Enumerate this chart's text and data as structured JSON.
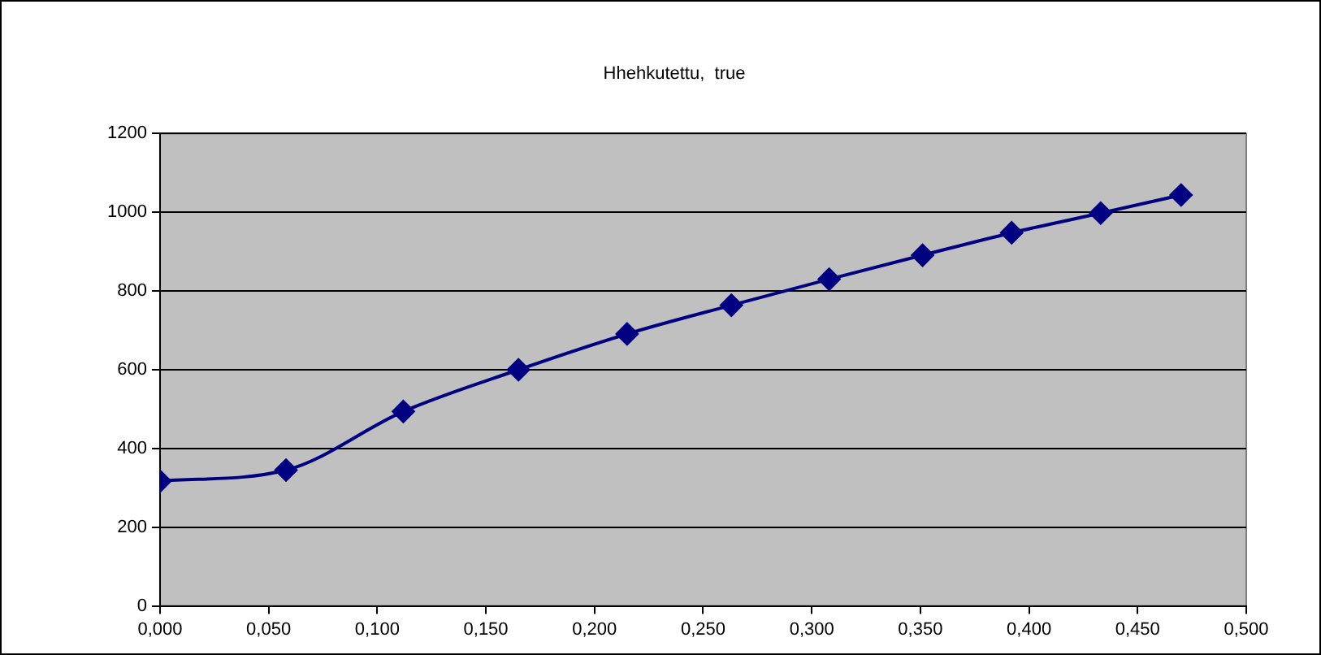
{
  "chart_data": {
    "type": "line",
    "title": "Hhehkutettu,  true",
    "x": [
      0.0,
      0.058,
      0.112,
      0.165,
      0.215,
      0.263,
      0.308,
      0.351,
      0.392,
      0.433,
      0.47
    ],
    "series": [
      {
        "color": "#000080",
        "values": [
          317,
          345,
          494,
          600,
          691,
          764,
          830,
          891,
          948,
          998,
          1044
        ]
      }
    ],
    "xlim": [
      0,
      0.5
    ],
    "xticks": [
      {
        "value": 0,
        "label": "0,000"
      },
      {
        "value": 0.05,
        "label": "0,050"
      },
      {
        "value": 0.1,
        "label": "0,100"
      },
      {
        "value": 0.15,
        "label": "0,150"
      },
      {
        "value": 0.2,
        "label": "0,200"
      },
      {
        "value": 0.25,
        "label": "0,250"
      },
      {
        "value": 0.3,
        "label": "0,300"
      },
      {
        "value": 0.35,
        "label": "0,350"
      },
      {
        "value": 0.4,
        "label": "0,400"
      },
      {
        "value": 0.45,
        "label": "0,450"
      },
      {
        "value": 0.5,
        "label": "0,500"
      }
    ],
    "ylim": [
      0,
      1200
    ],
    "yticks": [
      0,
      200,
      400,
      600,
      800,
      1000,
      1200
    ],
    "grid": "y",
    "legend": false,
    "marker": "diamond",
    "line_style": "solid"
  }
}
